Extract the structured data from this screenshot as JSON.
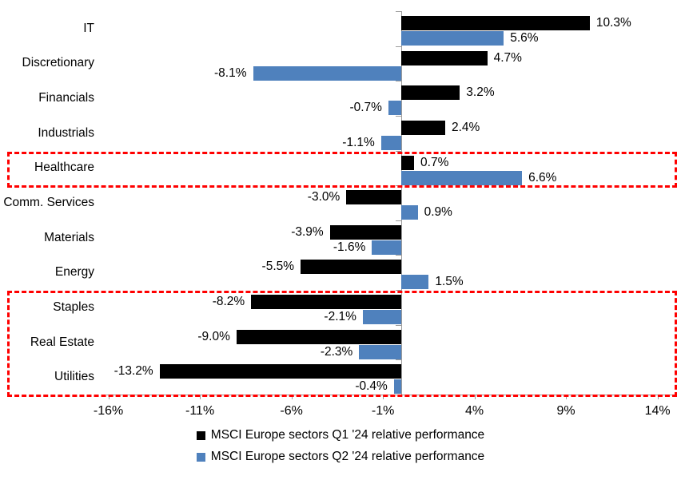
{
  "chart_data": {
    "type": "bar",
    "orientation": "horizontal",
    "title": "",
    "xlabel": "",
    "ylabel": "",
    "categories": [
      "IT",
      "Discretionary",
      "Financials",
      "Industrials",
      "Healthcare",
      "Comm. Services",
      "Materials",
      "Energy",
      "Staples",
      "Real Estate",
      "Utilities"
    ],
    "series": [
      {
        "name": "MSCI Europe sectors Q1 '24 relative performance",
        "color": "#000000",
        "values": [
          10.3,
          4.7,
          3.2,
          2.4,
          0.7,
          -3.0,
          -3.9,
          -5.5,
          -8.2,
          -9.0,
          -13.2
        ]
      },
      {
        "name": "MSCI Europe sectors Q2 '24 relative performance",
        "color": "#4F81BD",
        "values": [
          5.6,
          -8.1,
          -0.7,
          -1.1,
          6.6,
          0.9,
          -1.6,
          1.5,
          -2.1,
          -2.3,
          -0.4
        ]
      }
    ],
    "value_labels": true,
    "value_label_suffix": "%",
    "x_axis": {
      "tick_labels": [
        "-16%",
        "-11%",
        "-6%",
        "-1%",
        "4%",
        "9%",
        "14%"
      ],
      "tick_values": [
        -16,
        -11,
        -6,
        -1,
        4,
        9,
        14
      ],
      "min": -16.1,
      "max": 15.0
    },
    "grid": false,
    "legend_position": "bottom",
    "axis_color": "#9c9c9c",
    "highlights": [
      {
        "name": "healthcare-highlight",
        "row_start": 4,
        "row_end": 4,
        "color": "#ff0000"
      },
      {
        "name": "defensives-highlight",
        "row_start": 8,
        "row_end": 10,
        "color": "#ff0000"
      }
    ]
  }
}
